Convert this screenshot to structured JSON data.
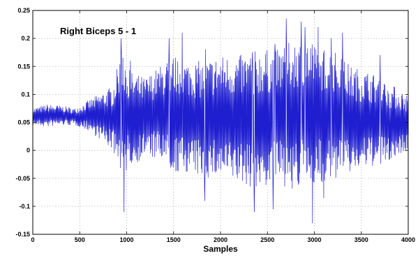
{
  "chart_data": {
    "type": "line",
    "title": "",
    "annotation": "Right Biceps 5 - 1",
    "xlabel": "Samples",
    "ylabel": "",
    "xlim": [
      0,
      4000
    ],
    "ylim": [
      -0.15,
      0.25
    ],
    "xticks": [
      0,
      500,
      1000,
      1500,
      2000,
      2500,
      3000,
      3500,
      4000
    ],
    "yticks": [
      -0.15,
      -0.1,
      -0.05,
      0,
      0.05,
      0.1,
      0.15,
      0.2,
      0.25
    ],
    "xtick_labels": [
      "0",
      "500",
      "1000",
      "1500",
      "2000",
      "2500",
      "3000",
      "3500",
      "4000"
    ],
    "ytick_labels": [
      "-0.15",
      "-0.1",
      "-0.05",
      "0",
      "0.05",
      "0.1",
      "0.15",
      "0.2",
      "0.25"
    ],
    "grid": true,
    "line_color": "#1f1fd0",
    "envelope": [
      {
        "x": 0,
        "lo": 0.045,
        "hi": 0.075
      },
      {
        "x": 150,
        "lo": 0.042,
        "hi": 0.082
      },
      {
        "x": 300,
        "lo": 0.045,
        "hi": 0.08
      },
      {
        "x": 450,
        "lo": 0.045,
        "hi": 0.075
      },
      {
        "x": 600,
        "lo": 0.035,
        "hi": 0.09
      },
      {
        "x": 750,
        "lo": 0.015,
        "hi": 0.105
      },
      {
        "x": 850,
        "lo": 0.0,
        "hi": 0.115
      },
      {
        "x": 950,
        "lo": -0.04,
        "hi": 0.18
      },
      {
        "x": 1050,
        "lo": -0.03,
        "hi": 0.14
      },
      {
        "x": 1200,
        "lo": -0.01,
        "hi": 0.13
      },
      {
        "x": 1350,
        "lo": -0.02,
        "hi": 0.15
      },
      {
        "x": 1500,
        "lo": -0.04,
        "hi": 0.17
      },
      {
        "x": 1650,
        "lo": -0.04,
        "hi": 0.16
      },
      {
        "x": 1800,
        "lo": -0.05,
        "hi": 0.16
      },
      {
        "x": 2000,
        "lo": -0.05,
        "hi": 0.17
      },
      {
        "x": 2200,
        "lo": -0.06,
        "hi": 0.17
      },
      {
        "x": 2400,
        "lo": -0.07,
        "hi": 0.18
      },
      {
        "x": 2600,
        "lo": -0.06,
        "hi": 0.18
      },
      {
        "x": 2800,
        "lo": -0.07,
        "hi": 0.2
      },
      {
        "x": 3000,
        "lo": -0.06,
        "hi": 0.19
      },
      {
        "x": 3200,
        "lo": -0.06,
        "hi": 0.18
      },
      {
        "x": 3400,
        "lo": -0.04,
        "hi": 0.15
      },
      {
        "x": 3600,
        "lo": -0.03,
        "hi": 0.14
      },
      {
        "x": 3800,
        "lo": -0.02,
        "hi": 0.12
      },
      {
        "x": 4000,
        "lo": 0.0,
        "hi": 0.1
      }
    ],
    "spikes": [
      {
        "x": 940,
        "y": 0.2
      },
      {
        "x": 970,
        "y": -0.11
      },
      {
        "x": 960,
        "y": 0.165
      },
      {
        "x": 1040,
        "y": 0.16
      },
      {
        "x": 1450,
        "y": 0.2
      },
      {
        "x": 1590,
        "y": 0.21
      },
      {
        "x": 1830,
        "y": -0.09
      },
      {
        "x": 1840,
        "y": 0.18
      },
      {
        "x": 2340,
        "y": 0.175
      },
      {
        "x": 2360,
        "y": -0.11
      },
      {
        "x": 2560,
        "y": -0.105
      },
      {
        "x": 2580,
        "y": 0.19
      },
      {
        "x": 2700,
        "y": 0.235
      },
      {
        "x": 2860,
        "y": 0.23
      },
      {
        "x": 2900,
        "y": 0.22
      },
      {
        "x": 2980,
        "y": -0.13
      },
      {
        "x": 3040,
        "y": 0.22
      },
      {
        "x": 3100,
        "y": -0.085
      },
      {
        "x": 3180,
        "y": 0.2
      },
      {
        "x": 3300,
        "y": 0.21
      },
      {
        "x": 3700,
        "y": 0.17
      }
    ]
  }
}
